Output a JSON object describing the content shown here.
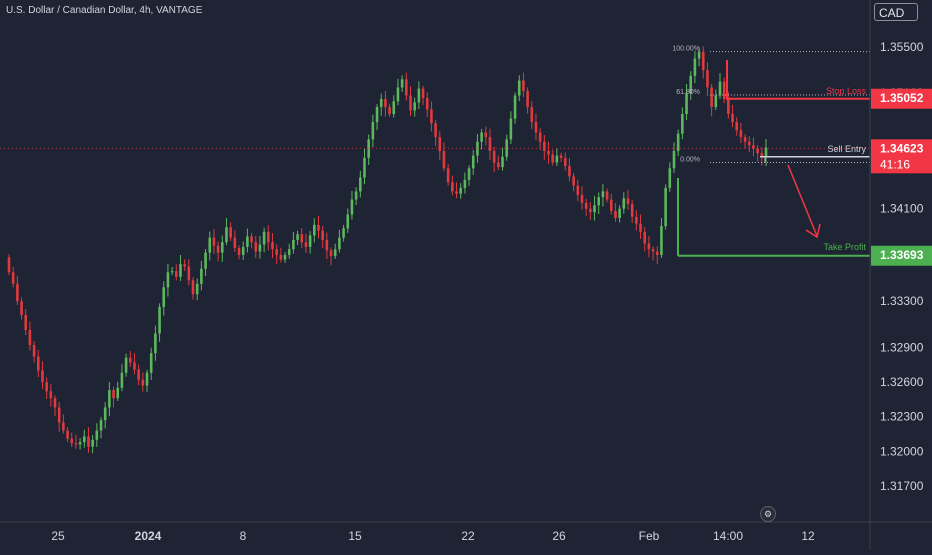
{
  "symbol": {
    "title": "U.S. Dollar / Canadian Dollar, 4h, VANTAGE",
    "currency": "CAD"
  },
  "colors": {
    "background": "#1e2433",
    "up": "#5cb85c",
    "down": "#e0393e",
    "axis_text": "#d1d4dc",
    "stop_loss": "#f23645",
    "take_profit": "#4caf50",
    "sell_entry": "#d1d4dc",
    "current_price": "#f23645"
  },
  "chart_data": {
    "type": "candlestick",
    "y_axis": {
      "ticks": [
        1.355,
        1.351,
        1.341,
        1.333,
        1.329,
        1.326,
        1.323,
        1.32,
        1.317
      ],
      "tick_labels": [
        "1.35500",
        "1.35100",
        "1.34100",
        "1.33300",
        "1.32900",
        "1.32600",
        "1.32300",
        "1.32000",
        "1.31700"
      ],
      "ylim": [
        1.3135,
        1.3585
      ]
    },
    "x_axis": {
      "tick_labels": [
        "25",
        "2024",
        "8",
        "15",
        "22",
        "26",
        "Feb",
        "14:00",
        "12"
      ],
      "bold_labels": [
        "2024"
      ]
    },
    "price_labels": {
      "stop_loss_price": "1.35052",
      "current_price": "1.34623",
      "countdown": "41:16",
      "take_profit_price": "1.33693"
    },
    "annotations": {
      "stop_loss": {
        "label": "Stop Loss",
        "price": 1.35052
      },
      "sell_entry": {
        "label": "Sell Entry",
        "price": 1.3455
      },
      "take_profit": {
        "label": "Take Profit",
        "price": 1.33693
      },
      "fib_levels": [
        {
          "label": "100.00%",
          "price": 1.3546
        },
        {
          "label": "61.80%",
          "price": 1.35085
        },
        {
          "label": "0.00%",
          "price": 1.345
        }
      ],
      "current_price_line": 1.34623
    },
    "path": [
      1.3368,
      1.3355,
      1.3345,
      1.333,
      1.3318,
      1.3305,
      1.3292,
      1.3282,
      1.327,
      1.326,
      1.3252,
      1.3246,
      1.3238,
      1.3225,
      1.3218,
      1.3211,
      1.3207,
      1.3206,
      1.3208,
      1.3213,
      1.3204,
      1.321,
      1.3218,
      1.3227,
      1.3238,
      1.3253,
      1.3246,
      1.3255,
      1.3268,
      1.3281,
      1.3277,
      1.3271,
      1.3262,
      1.3257,
      1.3268,
      1.3285,
      1.3302,
      1.3325,
      1.3342,
      1.3355,
      1.3356,
      1.3351,
      1.3362,
      1.336,
      1.3348,
      1.3336,
      1.3345,
      1.3358,
      1.3372,
      1.3385,
      1.3378,
      1.3372,
      1.3381,
      1.3394,
      1.3385,
      1.3376,
      1.337,
      1.3377,
      1.3386,
      1.3381,
      1.3373,
      1.3379,
      1.339,
      1.3381,
      1.3375,
      1.337,
      1.3366,
      1.337,
      1.3375,
      1.3383,
      1.3388,
      1.3381,
      1.3377,
      1.3387,
      1.3396,
      1.3391,
      1.3383,
      1.3374,
      1.3369,
      1.3375,
      1.3385,
      1.3393,
      1.3405,
      1.3418,
      1.3425,
      1.3437,
      1.3454,
      1.347,
      1.3485,
      1.3498,
      1.3505,
      1.3498,
      1.3492,
      1.3503,
      1.3515,
      1.3522,
      1.3508,
      1.3495,
      1.3502,
      1.3514,
      1.3506,
      1.3496,
      1.3484,
      1.3472,
      1.346,
      1.3445,
      1.3433,
      1.3425,
      1.3423,
      1.3428,
      1.3435,
      1.3445,
      1.3456,
      1.3468,
      1.3476,
      1.3472,
      1.346,
      1.345,
      1.3446,
      1.3455,
      1.347,
      1.3488,
      1.3508,
      1.3521,
      1.3512,
      1.3498,
      1.3485,
      1.3476,
      1.3468,
      1.346,
      1.3457,
      1.345,
      1.3456,
      1.3454,
      1.3447,
      1.3438,
      1.343,
      1.3422,
      1.3415,
      1.341,
      1.3407,
      1.3413,
      1.342,
      1.3425,
      1.3418,
      1.3408,
      1.3402,
      1.341,
      1.3419,
      1.3414,
      1.3403,
      1.3397,
      1.339,
      1.338,
      1.3375,
      1.3373,
      1.337,
      1.3395,
      1.3428,
      1.3445,
      1.346,
      1.3475,
      1.3492,
      1.351,
      1.3525,
      1.354,
      1.3546,
      1.353,
      1.3515,
      1.3498,
      1.3508,
      1.352,
      1.3505,
      1.3492,
      1.3485,
      1.3478,
      1.3472,
      1.3468,
      1.3465,
      1.3462,
      1.3458,
      1.3455,
      1.3463
    ]
  }
}
